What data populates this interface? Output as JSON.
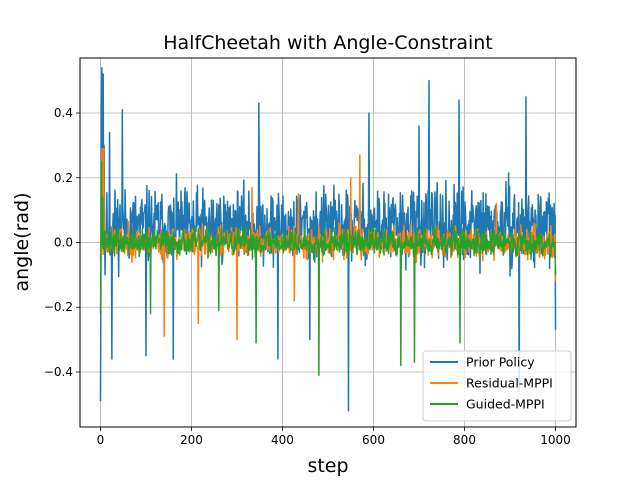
{
  "chart_data": {
    "type": "line",
    "title": "HalfCheetah with Angle-Constraint",
    "xlabel": "step",
    "ylabel": "angle(rad)",
    "xlim": [
      -45,
      1045
    ],
    "ylim": [
      -0.57,
      0.57
    ],
    "xticks": [
      0,
      200,
      400,
      600,
      800,
      1000
    ],
    "yticks": [
      -0.4,
      -0.2,
      0.0,
      0.2,
      0.4
    ],
    "xtick_labels": [
      "0",
      "200",
      "400",
      "600",
      "800",
      "1000"
    ],
    "ytick_labels": [
      "−0.4",
      "−0.2",
      "0.0",
      "0.2",
      "0.4"
    ],
    "grid": true,
    "legend_position": "lower-right",
    "n_steps": 1000,
    "series": [
      {
        "name": "Prior Policy",
        "color": "#1f77b4",
        "noise": {
          "mean": 0.05,
          "amplitude": 0.17,
          "seed": 11
        },
        "keypoints": [
          [
            0,
            -0.49
          ],
          [
            1,
            -0.1
          ],
          [
            2,
            0.42
          ],
          [
            3,
            0.54
          ],
          [
            5,
            0.28
          ],
          [
            6,
            0.52
          ],
          [
            8,
            0.3
          ],
          [
            10,
            -0.1
          ],
          [
            20,
            0.34
          ],
          [
            25,
            -0.36
          ],
          [
            48,
            0.41
          ],
          [
            100,
            -0.35
          ],
          [
            160,
            -0.36
          ],
          [
            348,
            0.43
          ],
          [
            390,
            -0.36
          ],
          [
            460,
            -0.3
          ],
          [
            545,
            -0.52
          ],
          [
            590,
            0.4
          ],
          [
            700,
            0.36
          ],
          [
            722,
            0.5
          ],
          [
            788,
            0.44
          ],
          [
            920,
            -0.46
          ],
          [
            935,
            0.45
          ],
          [
            1000,
            -0.27
          ]
        ]
      },
      {
        "name": "Residual-MPPI",
        "color": "#ff7f0e",
        "noise": {
          "mean": 0.0,
          "amplitude": 0.07,
          "seed": 23
        },
        "keypoints": [
          [
            0,
            -0.05
          ],
          [
            3,
            0.29
          ],
          [
            5,
            0.22
          ],
          [
            7,
            0.29
          ],
          [
            9,
            0.05
          ],
          [
            140,
            -0.29
          ],
          [
            215,
            -0.25
          ],
          [
            300,
            -0.3
          ],
          [
            333,
            0.17
          ],
          [
            426,
            -0.18
          ],
          [
            435,
            0.15
          ],
          [
            550,
            0.2
          ],
          [
            570,
            0.27
          ],
          [
            870,
            0.12
          ],
          [
            1000,
            -0.12
          ]
        ]
      },
      {
        "name": "Guided-MPPI",
        "color": "#2ca02c",
        "noise": {
          "mean": 0.0,
          "amplitude": 0.06,
          "seed": 37
        },
        "keypoints": [
          [
            0,
            -0.22
          ],
          [
            2,
            0.25
          ],
          [
            5,
            0.14
          ],
          [
            110,
            -0.22
          ],
          [
            260,
            -0.21
          ],
          [
            342,
            -0.31
          ],
          [
            480,
            -0.41
          ],
          [
            660,
            -0.38
          ],
          [
            690,
            -0.37
          ],
          [
            790,
            -0.31
          ],
          [
            1000,
            -0.1
          ]
        ]
      }
    ]
  }
}
